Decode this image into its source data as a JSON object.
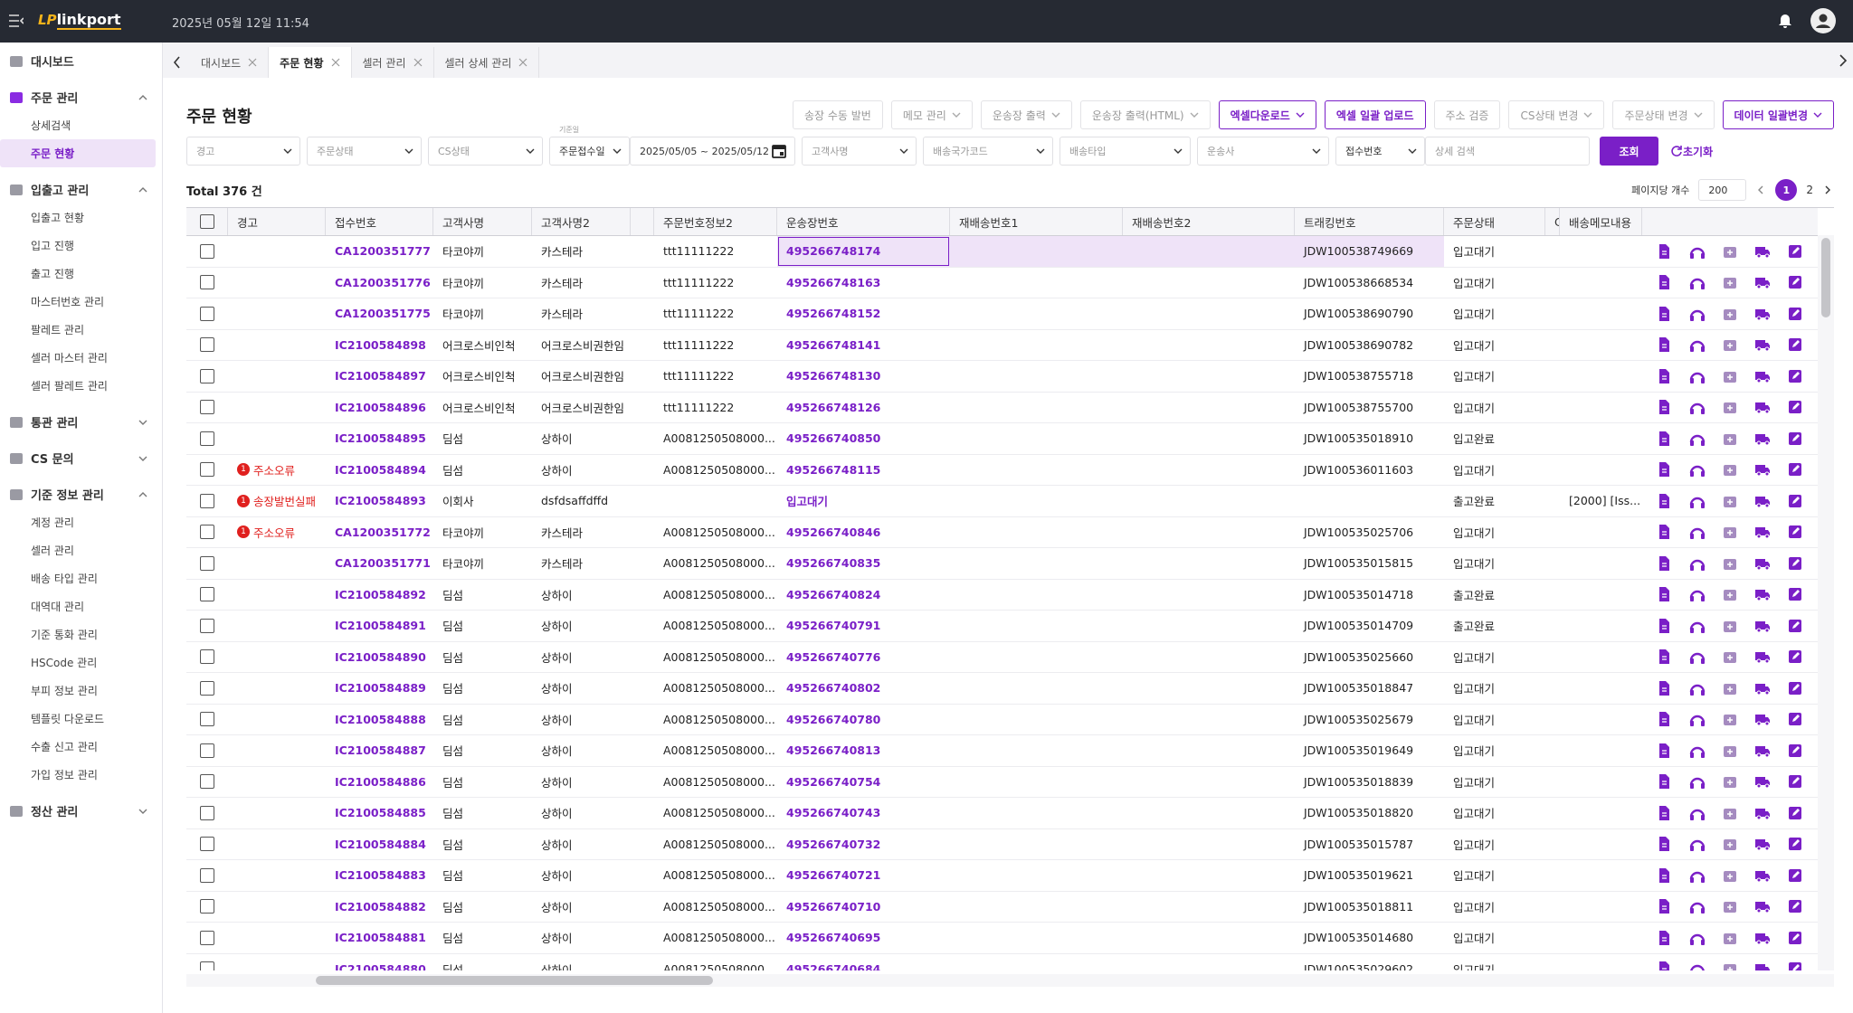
{
  "header": {
    "logo_mark": "LP",
    "logo": "linkport",
    "datetime": "2025년 05월 12일 11:54"
  },
  "sidebar": [
    {
      "label": "대시보드"
    },
    {
      "label": "주문 관리",
      "items": [
        "상세검색",
        "주문 현황"
      ]
    },
    {
      "label": "입출고 관리",
      "items": [
        "입출고 현황",
        "입고 진행",
        "출고 진행",
        "마스터번호 관리",
        "팔레트 관리",
        "셀러 마스터 관리",
        "셀러 팔레트 관리"
      ]
    },
    {
      "label": "통관 관리"
    },
    {
      "label": "CS 문의"
    },
    {
      "label": "기준 정보 관리",
      "items": [
        "계정 관리",
        "셀러 관리",
        "배송 타입 관리",
        "대역대 관리",
        "기준 통화 관리",
        "HSCode 관리",
        "부피 정보 관리",
        "템플릿 다운로드",
        "수출 신고 관리",
        "가입 정보 관리"
      ]
    },
    {
      "label": "정산 관리"
    }
  ],
  "tabs": [
    "대시보드",
    "주문 현황",
    "셀러 관리",
    "셀러 상세 관리"
  ],
  "page": {
    "title": "주문 현황",
    "buttons": [
      "송장 수동 발번",
      "메모 관리",
      "운송장 출력",
      "운송장 출력(HTML)",
      "엑셀다운로드",
      "엑셀 일괄 업로드",
      "주소 검증",
      "CS상태 변경",
      "주문상태 변경",
      "데이터 일괄변경"
    ]
  },
  "filters": {
    "selects_a": [
      "경고",
      "주문상태",
      "CS상태"
    ],
    "date": {
      "label": "기준일",
      "select": "주문접수일",
      "range": "2025/05/05 ~ 2025/05/12"
    },
    "selects_b": [
      "고객사명",
      "배송국가코드",
      "배송타입",
      "운송사"
    ],
    "search": {
      "select": "접수번호",
      "placeholder": "상세 검색"
    },
    "submit": "조회",
    "reset": "초기화"
  },
  "table": {
    "total": "Total 376 건",
    "page_size_label": "페이지당 개수",
    "page_size": "200",
    "pages": [
      "1",
      "2"
    ],
    "columns": [
      "경고",
      "접수번호",
      "고객사명",
      "고객사명2",
      "주문번호정보2",
      "운송장번호",
      "재배송번호1",
      "재배송번호2",
      "트래킹번호",
      "주문상태",
      "C",
      "배송메모내용"
    ],
    "rows": [
      [
        null,
        "CA1200351777",
        "타코야끼",
        "카스테라",
        "ttt11111222",
        "495266748174",
        null,
        null,
        "JDW100538749669",
        "입고대기",
        null,
        null
      ],
      [
        null,
        "CA1200351776",
        "타코야끼",
        "카스테라",
        "ttt11111222",
        "495266748163",
        null,
        null,
        "JDW100538668534",
        "입고대기",
        null,
        null
      ],
      [
        null,
        "CA1200351775",
        "타코야끼",
        "카스테라",
        "ttt11111222",
        "495266748152",
        null,
        null,
        "JDW100538690790",
        "입고대기",
        null,
        null
      ],
      [
        null,
        "IC2100584898",
        "어크로스비인척",
        "어크로스비권한임",
        "ttt11111222",
        "495266748141",
        null,
        null,
        "JDW100538690782",
        "입고대기",
        null,
        null
      ],
      [
        null,
        "IC2100584897",
        "어크로스비인척",
        "어크로스비권한임",
        "ttt11111222",
        "495266748130",
        null,
        null,
        "JDW100538755718",
        "입고대기",
        null,
        null
      ],
      [
        null,
        "IC2100584896",
        "어크로스비인척",
        "어크로스비권한임",
        "ttt11111222",
        "495266748126",
        null,
        null,
        "JDW100538755700",
        "입고대기",
        null,
        null
      ],
      [
        null,
        "IC2100584895",
        "딤섬",
        "상하이",
        "A0081250508000...",
        "495266740850",
        null,
        null,
        "JDW100535018910",
        "입고완료",
        null,
        null
      ],
      [
        {
          "badge": "1",
          "text": "주소오류"
        },
        "IC2100584894",
        "딤섬",
        "상하이",
        "A0081250508000...",
        "495266748115",
        null,
        null,
        "JDW100536011603",
        "입고대기",
        null,
        null
      ],
      [
        {
          "badge": "1",
          "text": "송장발번실패"
        },
        "IC2100584893",
        "이회사",
        "dsfdsaffdffd",
        null,
        "입고대기",
        null,
        null,
        null,
        "출고완료",
        null,
        "[2000] [Iss..."
      ],
      [
        {
          "badge": "1",
          "text": "주소오류"
        },
        "CA1200351772",
        "타코야끼",
        "카스테라",
        "A0081250508000...",
        "495266740846",
        null,
        null,
        "JDW100535025706",
        "입고대기",
        null,
        null
      ],
      [
        null,
        "CA1200351771",
        "타코야끼",
        "카스테라",
        "A0081250508000...",
        "495266740835",
        null,
        null,
        "JDW100535015815",
        "입고대기",
        null,
        null
      ],
      [
        null,
        "IC2100584892",
        "딤섬",
        "상하이",
        "A0081250508000...",
        "495266740824",
        null,
        null,
        "JDW100535014718",
        "출고완료",
        null,
        null
      ],
      [
        null,
        "IC2100584891",
        "딤섬",
        "상하이",
        "A0081250508000...",
        "495266740791",
        null,
        null,
        "JDW100535014709",
        "출고완료",
        null,
        null
      ],
      [
        null,
        "IC2100584890",
        "딤섬",
        "상하이",
        "A0081250508000...",
        "495266740776",
        null,
        null,
        "JDW100535025660",
        "입고대기",
        null,
        null
      ],
      [
        null,
        "IC2100584889",
        "딤섬",
        "상하이",
        "A0081250508000...",
        "495266740802",
        null,
        null,
        "JDW100535018847",
        "입고대기",
        null,
        null
      ],
      [
        null,
        "IC2100584888",
        "딤섬",
        "상하이",
        "A0081250508000...",
        "495266740780",
        null,
        null,
        "JDW100535025679",
        "입고대기",
        null,
        null
      ],
      [
        null,
        "IC2100584887",
        "딤섬",
        "상하이",
        "A0081250508000...",
        "495266740813",
        null,
        null,
        "JDW100535019649",
        "입고대기",
        null,
        null
      ],
      [
        null,
        "IC2100584886",
        "딤섬",
        "상하이",
        "A0081250508000...",
        "495266740754",
        null,
        null,
        "JDW100535018839",
        "입고대기",
        null,
        null
      ],
      [
        null,
        "IC2100584885",
        "딤섬",
        "상하이",
        "A0081250508000...",
        "495266740743",
        null,
        null,
        "JDW100535018820",
        "입고대기",
        null,
        null
      ],
      [
        null,
        "IC2100584884",
        "딤섬",
        "상하이",
        "A0081250508000...",
        "495266740732",
        null,
        null,
        "JDW100535015787",
        "입고대기",
        null,
        null
      ],
      [
        null,
        "IC2100584883",
        "딤섬",
        "상하이",
        "A0081250508000...",
        "495266740721",
        null,
        null,
        "JDW100535019621",
        "입고대기",
        null,
        null
      ],
      [
        null,
        "IC2100584882",
        "딤섬",
        "상하이",
        "A0081250508000...",
        "495266740710",
        null,
        null,
        "JDW100535018811",
        "입고대기",
        null,
        null
      ],
      [
        null,
        "IC2100584881",
        "딤섬",
        "상하이",
        "A0081250508000...",
        "495266740695",
        null,
        null,
        "JDW100535014680",
        "입고대기",
        null,
        null
      ],
      [
        null,
        "IC2100584880",
        "딤섬",
        "상하이",
        "A0081250508000...",
        "495266740684",
        null,
        null,
        "JDW100535029602",
        "입고대기",
        null,
        null
      ]
    ]
  }
}
